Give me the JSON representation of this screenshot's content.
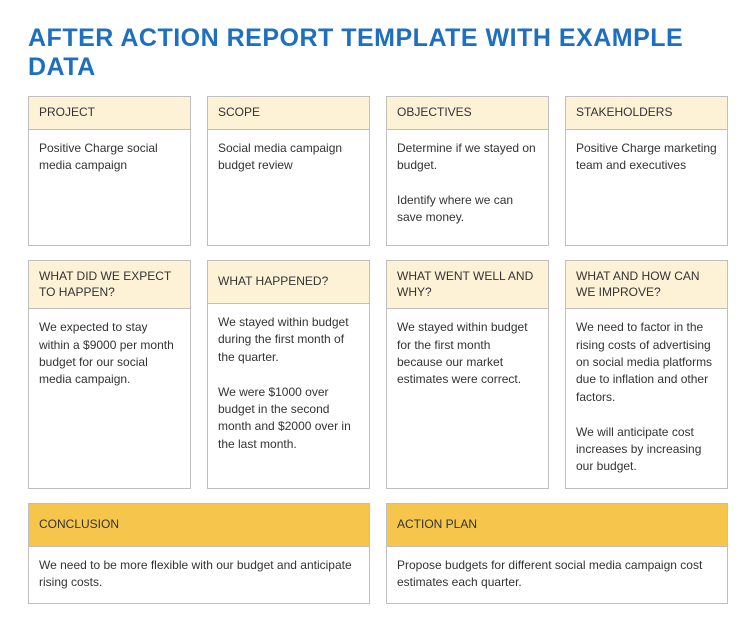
{
  "title": "AFTER ACTION REPORT TEMPLATE WITH EXAMPLE DATA",
  "row1": [
    {
      "header": "PROJECT",
      "body": "Positive Charge social media campaign"
    },
    {
      "header": "SCOPE",
      "body": "Social media campaign budget review"
    },
    {
      "header": "OBJECTIVES",
      "body": "Determine if we stayed on budget.\n\nIdentify where we can save money."
    },
    {
      "header": "STAKEHOLDERS",
      "body": "Positive Charge marketing team and executives"
    }
  ],
  "row2": [
    {
      "header": "WHAT DID WE EXPECT TO HAPPEN?",
      "body": "We expected to stay within a $9000 per month budget for our social media campaign."
    },
    {
      "header": "WHAT HAPPENED?",
      "body": "We stayed within budget during the first month of the quarter.\n\nWe were $1000 over budget in the second month and $2000 over in the last month."
    },
    {
      "header": "WHAT WENT WELL AND WHY?",
      "body": "We stayed within budget for the first month because our market estimates were correct."
    },
    {
      "header": "WHAT AND HOW CAN WE IMPROVE?",
      "body": "We need to factor in the rising costs of advertising on social media platforms due to inflation and other factors.\n\nWe will anticipate cost increases by increasing our budget."
    }
  ],
  "row3": [
    {
      "header": "CONCLUSION",
      "body": "We need to be more flexible with our budget and anticipate rising costs."
    },
    {
      "header": "ACTION PLAN",
      "body": "Propose budgets for different social media campaign cost estimates each quarter."
    }
  ]
}
